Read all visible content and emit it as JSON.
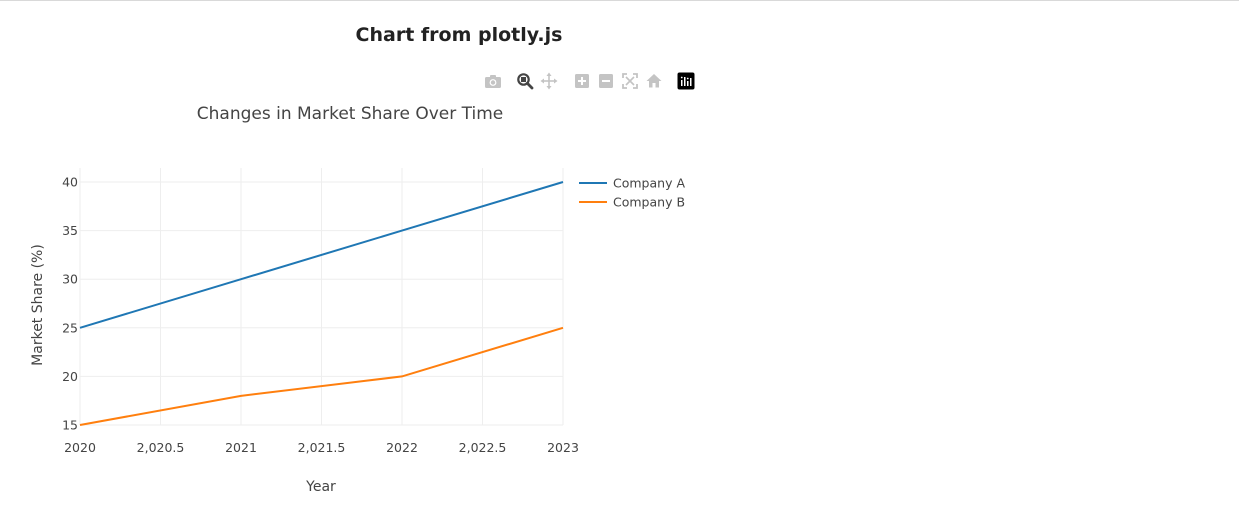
{
  "page": {
    "heading": "Chart from plotly.js"
  },
  "modebar": {
    "buttons": [
      {
        "name": "camera-icon",
        "title": "Download plot as a png"
      },
      {
        "name": "zoom-icon",
        "title": "Zoom"
      },
      {
        "name": "pan-icon",
        "title": "Pan"
      },
      {
        "name": "zoom-in-icon",
        "title": "Zoom in"
      },
      {
        "name": "zoom-out-icon",
        "title": "Zoom out"
      },
      {
        "name": "autoscale-icon",
        "title": "Autoscale"
      },
      {
        "name": "reset-axes-icon",
        "title": "Reset axes"
      },
      {
        "name": "plotly-logo-icon",
        "title": "Produced with Plotly"
      }
    ]
  },
  "chart_data": {
    "type": "line",
    "title": "Changes in Market Share Over Time",
    "xlabel": "Year",
    "ylabel": "Market Share (%)",
    "xlim": [
      2020,
      2023
    ],
    "ylim": [
      15,
      40
    ],
    "x_ticks": [
      2020,
      2020.5,
      2021,
      2021.5,
      2022,
      2022.5,
      2023
    ],
    "x_tick_labels": [
      "2020",
      "2,020.5",
      "2021",
      "2,021.5",
      "2022",
      "2,022.5",
      "2023"
    ],
    "y_ticks": [
      15,
      20,
      25,
      30,
      35,
      40
    ],
    "y_tick_labels": [
      "15",
      "20",
      "25",
      "30",
      "35",
      "40"
    ],
    "grid": true,
    "legend_position": "top-right",
    "series": [
      {
        "name": "Company A",
        "color": "#1f77b4",
        "x": [
          2020,
          2021,
          2022,
          2023
        ],
        "y": [
          25,
          30,
          35,
          40
        ]
      },
      {
        "name": "Company B",
        "color": "#ff7f0e",
        "x": [
          2020,
          2021,
          2022,
          2023
        ],
        "y": [
          15,
          18,
          20,
          25
        ]
      }
    ]
  }
}
